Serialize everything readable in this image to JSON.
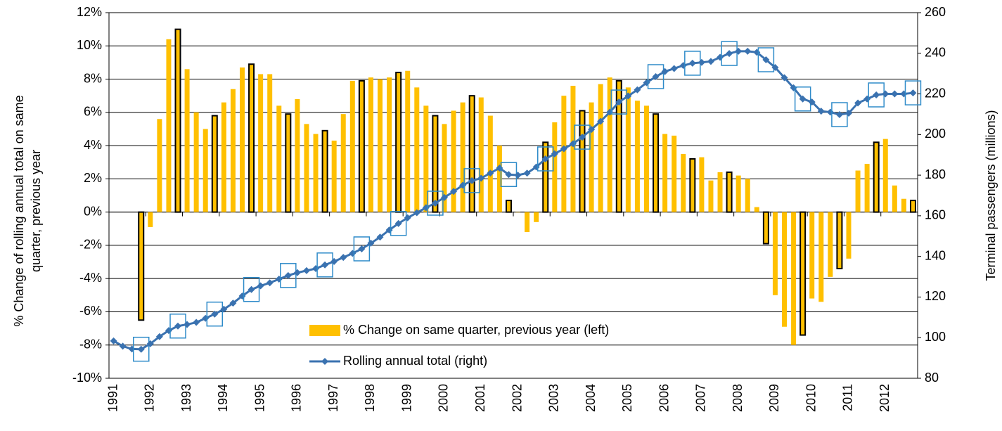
{
  "chart_data": {
    "type": "combo",
    "y_label": [
      "% Change of rolling annual total on same",
      "quarter, previous year"
    ],
    "y2_label": "Terminal passengers (millions)",
    "categories": [
      "1991",
      null,
      null,
      null,
      "1992",
      null,
      null,
      null,
      "1993",
      null,
      null,
      null,
      "1994",
      null,
      null,
      null,
      "1995",
      null,
      null,
      null,
      "1996",
      null,
      null,
      null,
      "1997",
      null,
      null,
      null,
      "1998",
      null,
      null,
      null,
      "1999",
      null,
      null,
      null,
      "2000",
      null,
      null,
      null,
      "2001",
      null,
      null,
      null,
      "2002",
      null,
      null,
      null,
      "2003",
      null,
      null,
      null,
      "2004",
      null,
      null,
      null,
      "2005",
      null,
      null,
      null,
      "2006",
      null,
      null,
      null,
      "2007",
      null,
      null,
      null,
      "2008",
      null,
      null,
      null,
      "2009",
      null,
      null,
      null,
      "2010",
      null,
      null,
      null,
      "2011",
      null,
      null,
      null,
      "2012",
      null,
      null,
      null
    ],
    "series": [
      {
        "name": "% Change on same quarter, previous year (left)",
        "type": "bar",
        "color": "#ffc000",
        "axis": "y",
        "values": [
          null,
          null,
          null,
          -6.5,
          -0.9,
          5.6,
          10.4,
          11.0,
          8.6,
          6.0,
          5.0,
          5.8,
          6.6,
          7.4,
          8.7,
          8.9,
          8.3,
          8.3,
          6.4,
          5.9,
          6.8,
          5.3,
          4.7,
          4.9,
          4.3,
          5.9,
          7.9,
          7.9,
          8.1,
          8.0,
          8.1,
          8.4,
          8.5,
          7.5,
          6.4,
          5.8,
          5.3,
          6.1,
          6.6,
          7.0,
          6.9,
          5.8,
          4.0,
          0.7,
          0.0,
          -1.2,
          -0.6,
          4.2,
          5.4,
          7.0,
          7.6,
          6.1,
          6.6,
          7.7,
          8.1,
          7.9,
          7.5,
          6.7,
          6.4,
          5.9,
          4.7,
          4.6,
          3.5,
          3.2,
          3.3,
          1.9,
          2.4,
          2.4,
          2.2,
          2.0,
          0.3,
          -1.9,
          -5.0,
          -6.9,
          -8.0,
          -7.4,
          -5.2,
          -5.4,
          -3.9,
          -3.4,
          -2.8,
          2.5,
          2.9,
          4.2,
          4.4,
          1.6,
          0.8,
          0.7
        ]
      },
      {
        "name": "Rolling annual total (right)",
        "type": "line",
        "color": "#3a72b0",
        "axis": "y2",
        "values": [
          98.4,
          95.8,
          94.4,
          94.3,
          97,
          100.5,
          103.5,
          105.7,
          106.5,
          107.5,
          109.5,
          111.6,
          114,
          117,
          120.5,
          123.7,
          125.5,
          127,
          128.8,
          130.6,
          132,
          133,
          134,
          135.8,
          137.5,
          139.5,
          141.5,
          143.7,
          146.5,
          149.5,
          153,
          156.2,
          159,
          161.5,
          164,
          166.2,
          169,
          172,
          175,
          177.3,
          178.5,
          181,
          183.5,
          180.3,
          180,
          181,
          184,
          188,
          190.5,
          193,
          195.5,
          198.7,
          202.5,
          206.5,
          211,
          216,
          219,
          222,
          225.5,
          228.5,
          231,
          232.5,
          234,
          235.1,
          235.5,
          236,
          238,
          239.9,
          241,
          241,
          240.5,
          236.8,
          233,
          228,
          223,
          217.5,
          216,
          211.5,
          211,
          209.8,
          210.5,
          215.5,
          217.5,
          219.5,
          220,
          220,
          220,
          220.5
        ]
      }
    ],
    "ylim": [
      -10,
      12
    ],
    "yticks": [
      {
        "value": -10,
        "label": "-10%"
      },
      {
        "value": -8,
        "label": "-8%"
      },
      {
        "value": -6,
        "label": "-6%"
      },
      {
        "value": -4,
        "label": "-4%"
      },
      {
        "value": -2,
        "label": "-2%"
      },
      {
        "value": 0,
        "label": "0%"
      },
      {
        "value": 2,
        "label": "2%"
      },
      {
        "value": 4,
        "label": "4%"
      },
      {
        "value": 6,
        "label": "6%"
      },
      {
        "value": 8,
        "label": "8%"
      },
      {
        "value": 10,
        "label": "10%"
      },
      {
        "value": 12,
        "label": "12%"
      }
    ],
    "y2lim": [
      80,
      260
    ],
    "y2ticks": [
      80,
      100,
      120,
      140,
      160,
      180,
      200,
      220,
      240,
      260
    ],
    "grid": true,
    "legend": "bottom-center"
  }
}
